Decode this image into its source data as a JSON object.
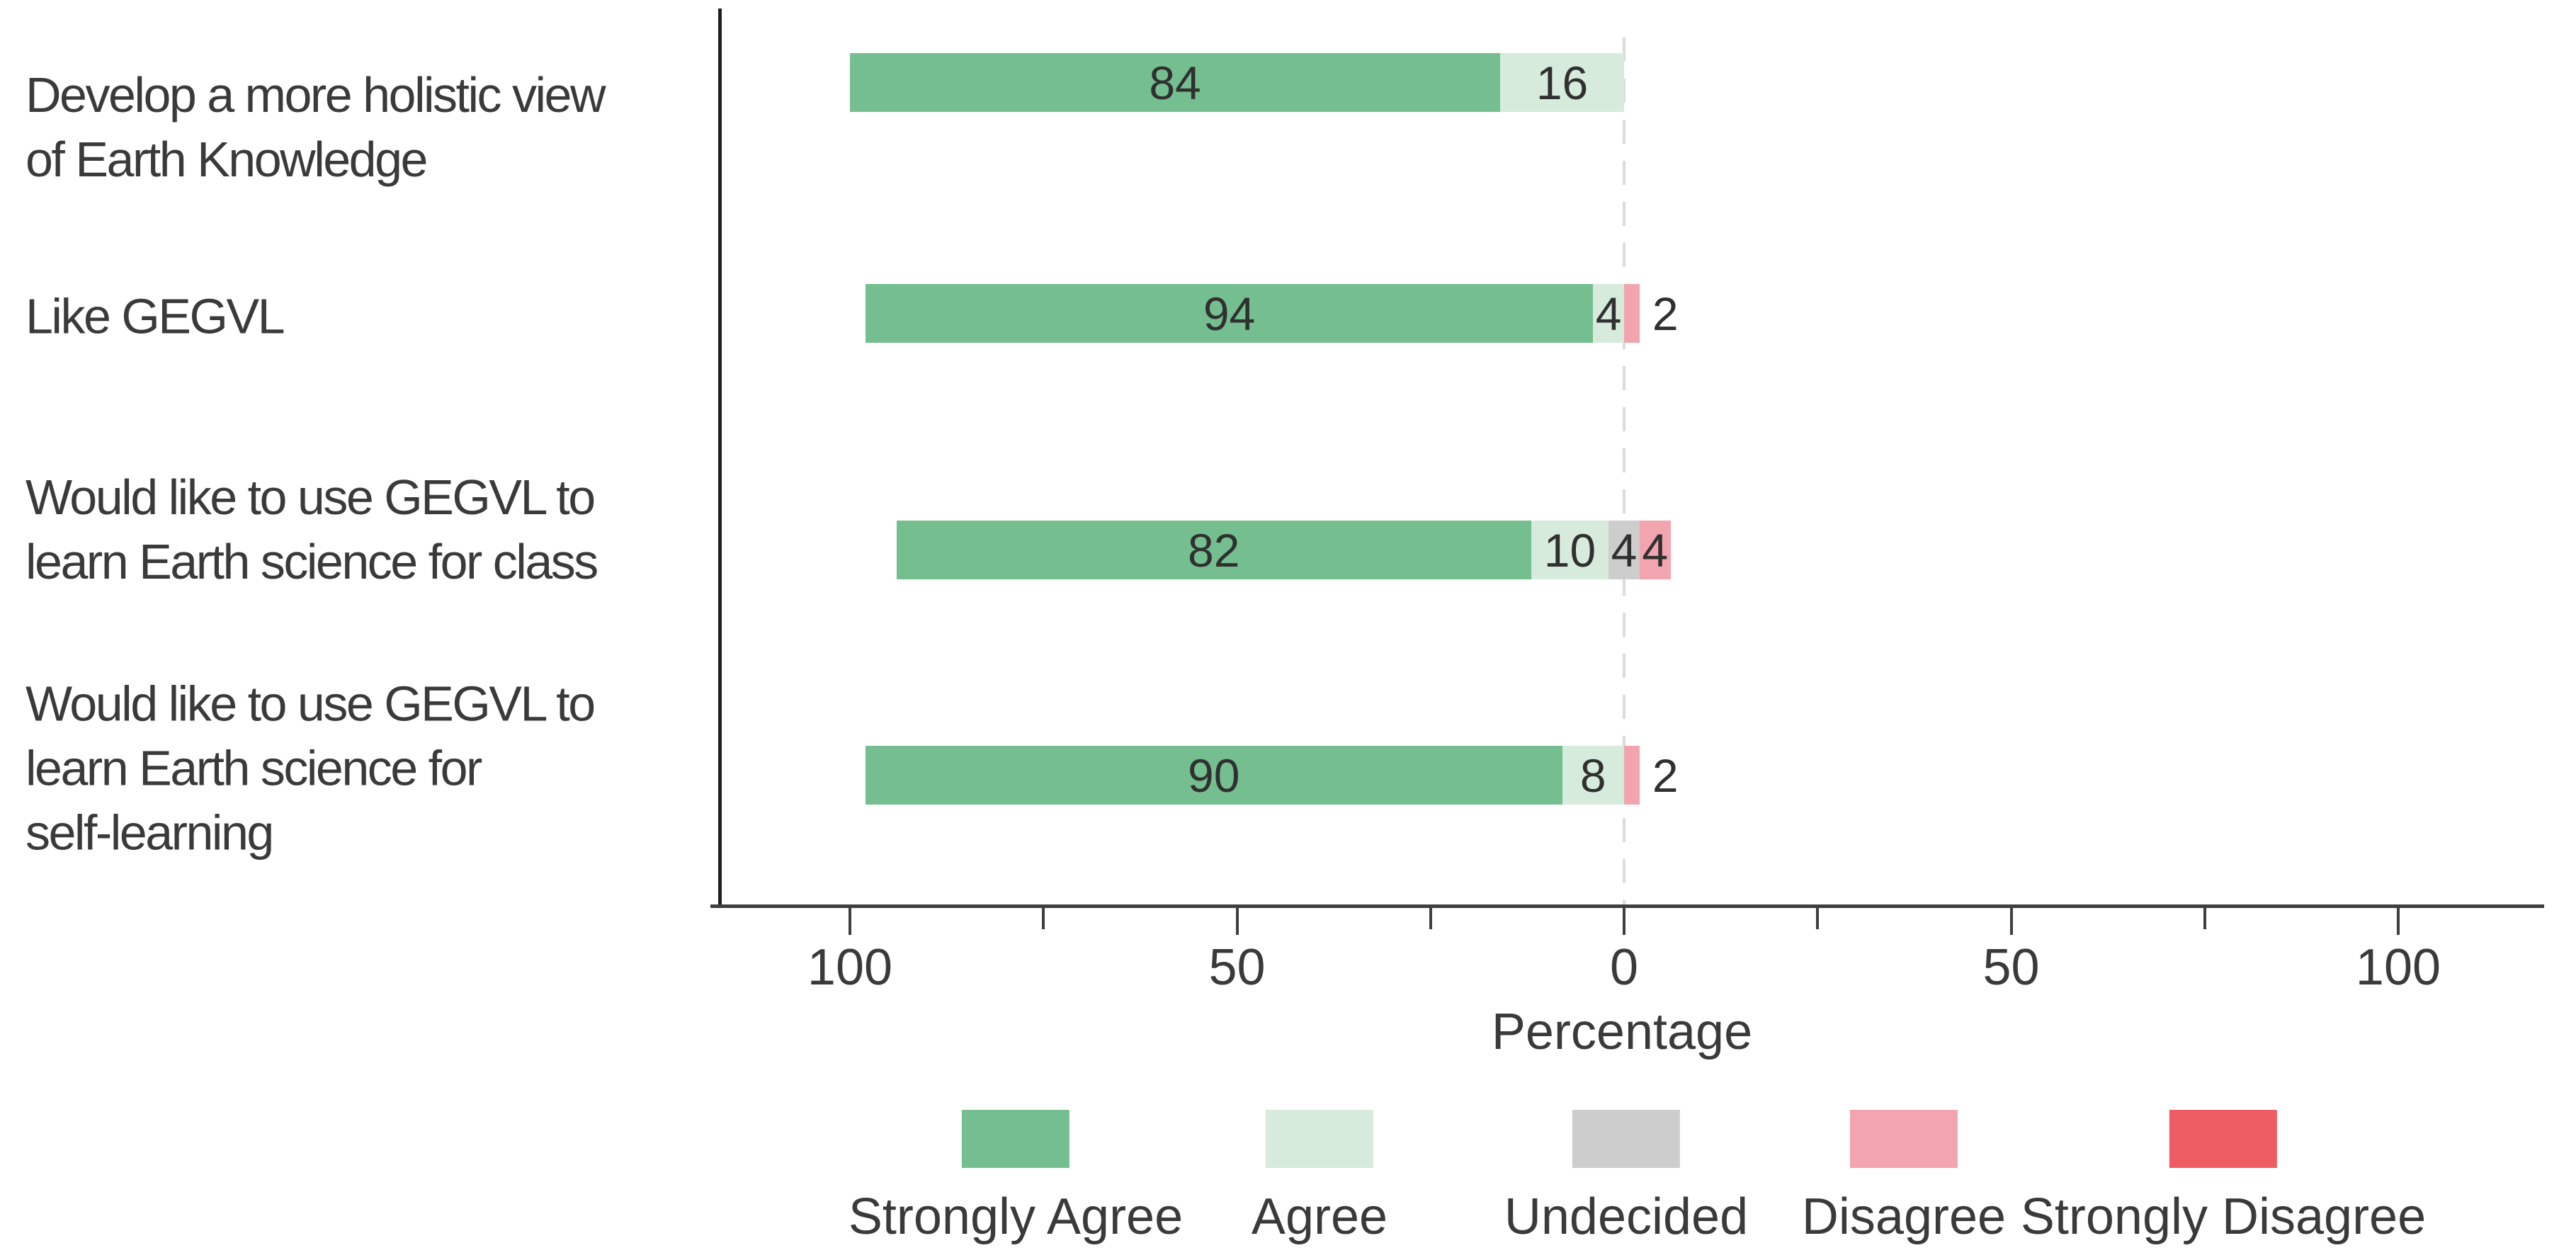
{
  "chart_data": {
    "type": "diverging_stacked_bar",
    "title": "",
    "xlabel": "Percentage",
    "orientation": "horizontal",
    "layout_note": "Agree responses plotted left of zero; Undecided segment centered on the zero line; Disagree responses to the right",
    "x_axis": {
      "tick_values": [
        -100,
        -50,
        0,
        50,
        100
      ],
      "tick_labels": [
        "100",
        "50",
        "0",
        "50",
        "100"
      ],
      "minor_tick_values": [
        -75,
        -25,
        25,
        75
      ],
      "zero_line": "dashed"
    },
    "categories": [
      "Develop a more holistic view of Earth Knowledge",
      "Like GEGVL",
      "Would like to use GEGVL to learn Earth science for class",
      "Would like to use GEGVL to learn Earth science for self-learning"
    ],
    "category_label_lines": [
      "Develop a more holistic view\nof Earth Knowledge",
      "Like GEGVL",
      "Would like to use GEGVL to\nlearn Earth science for class",
      "Would like to use GEGVL to\nlearn Earth science for\nself-learning"
    ],
    "series": [
      {
        "name": "Strongly Agree",
        "color": "#74BE8F",
        "values": [
          84,
          94,
          82,
          90
        ]
      },
      {
        "name": "Agree",
        "color": "#D7EBDC",
        "values": [
          16,
          4,
          10,
          8
        ]
      },
      {
        "name": "Undecided",
        "color": "#CDCDCD",
        "values": [
          0,
          0,
          4,
          0
        ]
      },
      {
        "name": "Disagree",
        "color": "#F2A4AF",
        "values": [
          0,
          2,
          4,
          2
        ]
      },
      {
        "name": "Strongly Disagree",
        "color": "#EE5D63",
        "values": [
          0,
          0,
          0,
          0
        ]
      }
    ],
    "displayed_value_labels": [
      [
        84,
        16
      ],
      [
        94,
        4,
        2
      ],
      [
        82,
        10,
        4,
        4
      ],
      [
        90,
        8,
        2
      ]
    ],
    "legend": {
      "position": "bottom",
      "entries": [
        "Strongly Agree",
        "Agree",
        "Undecided",
        "Disagree",
        "Strongly Disagree"
      ]
    },
    "colors": {
      "strongly_agree": "#74BE8F",
      "agree": "#D7EBDC",
      "undecided": "#CDCDCD",
      "disagree": "#F2A4AF",
      "strongly_disagree": "#EE5D63",
      "axis_line": "#3F3F3F",
      "spine": "#1F1F1F",
      "zero_dashed_line": "#DBDBDB",
      "text": "#3A3A3A"
    }
  }
}
